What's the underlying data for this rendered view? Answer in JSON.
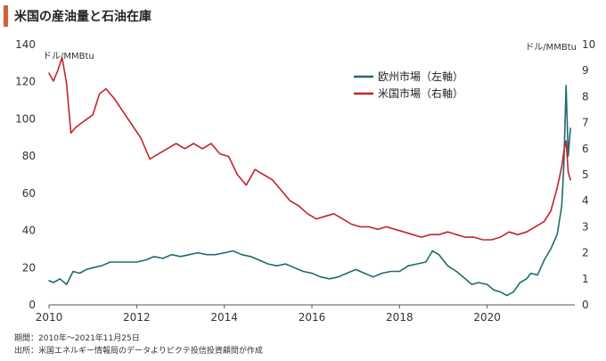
{
  "title": "米国の産油量と石油在庫",
  "left_unit": "ドル/MMBtu",
  "right_unit": "ドル/MMBtu",
  "footer": {
    "period": "期間：2010年～2021年11月25日",
    "source": "出所：米国エネルギー情報局のデータよりピクテ投信投資顧問が作成"
  },
  "colors": {
    "europe": "#1e6b70",
    "us": "#c0262d",
    "title_accent": "#d4622a"
  },
  "chart_data": {
    "type": "line",
    "x_ticks": [
      "2010",
      "2012",
      "2014",
      "2016",
      "2018",
      "2020"
    ],
    "xlim": [
      2010,
      2022
    ],
    "y_left_ticks": [
      "0",
      "20",
      "40",
      "60",
      "80",
      "100",
      "120",
      "140"
    ],
    "ylim_left": [
      0,
      140
    ],
    "y_right_ticks": [
      "0",
      "1",
      "2",
      "3",
      "4",
      "5",
      "6",
      "7",
      "8",
      "9",
      "10"
    ],
    "ylim_right": [
      0,
      10
    ],
    "grid": false,
    "legend_position": "top-right",
    "series": [
      {
        "name": "欧州市場（左軸）",
        "axis": "left",
        "x": [
          2010.0,
          2010.1,
          2010.25,
          2010.4,
          2010.55,
          2010.7,
          2010.85,
          2011.0,
          2011.2,
          2011.4,
          2011.6,
          2011.8,
          2012.0,
          2012.2,
          2012.4,
          2012.6,
          2012.8,
          2013.0,
          2013.2,
          2013.4,
          2013.6,
          2013.8,
          2014.0,
          2014.2,
          2014.4,
          2014.6,
          2014.8,
          2015.0,
          2015.2,
          2015.4,
          2015.6,
          2015.8,
          2016.0,
          2016.2,
          2016.4,
          2016.6,
          2016.8,
          2017.0,
          2017.2,
          2017.4,
          2017.6,
          2017.8,
          2018.0,
          2018.2,
          2018.4,
          2018.6,
          2018.75,
          2018.9,
          2019.1,
          2019.3,
          2019.5,
          2019.65,
          2019.8,
          2020.0,
          2020.15,
          2020.3,
          2020.45,
          2020.6,
          2020.75,
          2020.9,
          2021.0,
          2021.15,
          2021.3,
          2021.45,
          2021.6,
          2021.7,
          2021.75,
          2021.8,
          2021.85,
          2021.9
        ],
        "values": [
          13,
          12,
          14,
          11,
          18,
          17,
          19,
          20,
          21,
          23,
          23,
          23,
          23,
          24,
          26,
          25,
          27,
          26,
          27,
          28,
          27,
          27,
          28,
          29,
          27,
          26,
          24,
          22,
          21,
          22,
          20,
          18,
          17,
          15,
          14,
          15,
          17,
          19,
          17,
          15,
          17,
          18,
          18,
          21,
          22,
          23,
          29,
          27,
          21,
          18,
          14,
          11,
          12,
          11,
          8,
          7,
          5,
          7,
          12,
          14,
          17,
          16,
          24,
          30,
          38,
          53,
          75,
          118,
          80,
          95
        ]
      },
      {
        "name": "米国市場（右軸）",
        "axis": "right",
        "x": [
          2010.0,
          2010.1,
          2010.2,
          2010.3,
          2010.4,
          2010.5,
          2010.6,
          2010.75,
          2011.0,
          2011.15,
          2011.3,
          2011.5,
          2011.7,
          2011.9,
          2012.1,
          2012.3,
          2012.5,
          2012.7,
          2012.9,
          2013.1,
          2013.3,
          2013.5,
          2013.7,
          2013.9,
          2014.1,
          2014.3,
          2014.5,
          2014.7,
          2014.9,
          2015.1,
          2015.3,
          2015.5,
          2015.7,
          2015.9,
          2016.1,
          2016.3,
          2016.5,
          2016.7,
          2016.9,
          2017.1,
          2017.3,
          2017.5,
          2017.7,
          2017.9,
          2018.1,
          2018.3,
          2018.5,
          2018.7,
          2018.9,
          2019.1,
          2019.3,
          2019.5,
          2019.7,
          2019.9,
          2020.1,
          2020.3,
          2020.5,
          2020.7,
          2020.9,
          2021.1,
          2021.3,
          2021.45,
          2021.6,
          2021.7,
          2021.75,
          2021.8,
          2021.85,
          2021.9
        ],
        "values": [
          8.9,
          8.6,
          9.0,
          9.5,
          8.5,
          6.6,
          6.8,
          7.0,
          7.3,
          8.1,
          8.3,
          7.9,
          7.4,
          6.9,
          6.4,
          5.6,
          5.8,
          6.0,
          6.2,
          6.0,
          6.2,
          6.0,
          6.2,
          5.8,
          5.7,
          5.0,
          4.6,
          5.2,
          5.0,
          4.8,
          4.4,
          4.0,
          3.8,
          3.5,
          3.3,
          3.4,
          3.5,
          3.3,
          3.1,
          3.0,
          3.0,
          2.9,
          3.0,
          2.9,
          2.8,
          2.7,
          2.6,
          2.7,
          2.7,
          2.8,
          2.7,
          2.6,
          2.6,
          2.5,
          2.5,
          2.6,
          2.8,
          2.7,
          2.8,
          3.0,
          3.2,
          3.6,
          4.5,
          5.3,
          5.9,
          6.3,
          5.1,
          4.8
        ]
      }
    ]
  }
}
